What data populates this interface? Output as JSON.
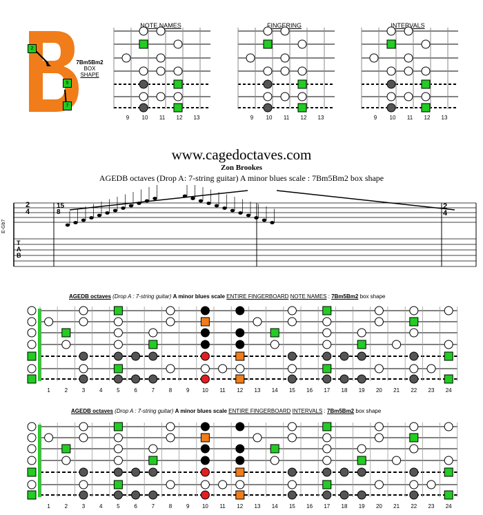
{
  "box_shape": {
    "letter": "B",
    "markers": [
      "2",
      "5",
      "7"
    ],
    "label_line1": "7Bm5Bm2",
    "label_line2": "BOX",
    "label_line3": "SHAPE"
  },
  "panels": [
    {
      "title": "NOTE NAMES",
      "frets": [
        "9",
        "10",
        "11",
        "12",
        "13"
      ]
    },
    {
      "title": "FINGERING",
      "frets": [
        "9",
        "10",
        "11",
        "12",
        "13"
      ]
    },
    {
      "title": "INTERVALS",
      "frets": [
        "9",
        "10",
        "11",
        "12",
        "13"
      ]
    }
  ],
  "site": "www.cagedoctaves.com",
  "author": "Zon Brookes",
  "subtitle": "AGEDB octaves (Drop A: 7-string guitar) A minor blues scale : 7Bm5Bm2 box shape",
  "score": {
    "chord_label": "E-Gb7",
    "tab_label": "TAB",
    "time_sig_top": "2",
    "time_sig_bottom": "4",
    "tuplet_top": "15",
    "tuplet_bottom": "8"
  },
  "fingerboard1": {
    "title_a": "AGEDB octaves",
    "title_b": "(Drop A : 7-string guitar)",
    "title_c": "A minor blues scale",
    "title_d": "ENTIRE FINGERBOARD",
    "title_e": "NOTE NAMES",
    "title_f": "7Bm5Bm2",
    "title_g": "box shape"
  },
  "fingerboard2": {
    "title_a": "AGEDB octaves",
    "title_b": "(Drop A : 7-string guitar)",
    "title_c": "A minor blues scale",
    "title_d": "ENTIRE FINGERBOARD",
    "title_e": "INTERVALS",
    "title_f": "7Bm5Bm2",
    "title_g": "box shape"
  },
  "fret_numbers": [
    "1",
    "2",
    "3",
    "4",
    "5",
    "6",
    "7",
    "8",
    "9",
    "10",
    "11",
    "12",
    "13",
    "14",
    "15",
    "16",
    "17",
    "18",
    "19",
    "20",
    "21",
    "22",
    "23",
    "24"
  ],
  "colors": {
    "root": "#22cc22",
    "box_orange": "#f07d1a",
    "highlight_red": "#e02020",
    "dark": "#555555"
  }
}
